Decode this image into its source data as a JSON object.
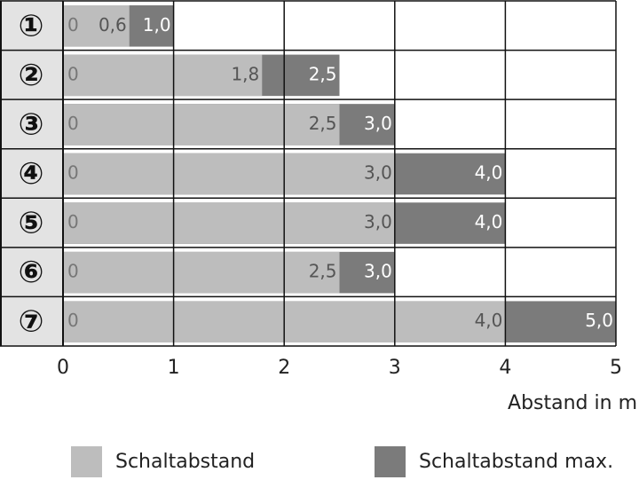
{
  "chart_data": {
    "type": "bar",
    "orientation": "horizontal",
    "overlay": true,
    "categories": [
      "①",
      "②",
      "③",
      "④",
      "⑤",
      "⑥",
      "⑦"
    ],
    "series": [
      {
        "name": "Schaltabstand",
        "color": "#bdbdbd",
        "values": [
          0.6,
          1.8,
          2.5,
          3.0,
          3.0,
          2.5,
          4.0
        ],
        "value_labels": [
          "0,6",
          "1,8",
          "2,5",
          "3,0",
          "3,0",
          "2,5",
          "4,0"
        ]
      },
      {
        "name": "Schaltabstand max.",
        "color": "#7b7b7b",
        "values": [
          1.0,
          2.5,
          3.0,
          4.0,
          4.0,
          3.0,
          5.0
        ],
        "value_labels": [
          "1,0",
          "2,5",
          "3,0",
          "4,0",
          "4,0",
          "3,0",
          "5,0"
        ]
      }
    ],
    "xlabel": "Abstand in m",
    "xlim": [
      0,
      5
    ],
    "xticks": [
      0,
      1,
      2,
      3,
      4,
      5
    ],
    "grid": true
  }
}
